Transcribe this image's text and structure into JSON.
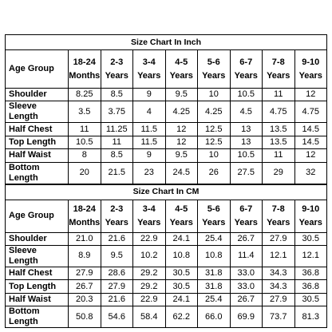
{
  "tables": [
    {
      "title": "Size Chart In Inch",
      "header": {
        "label": "Age Group",
        "columns": [
          {
            "range": "18-24",
            "unit": "Months"
          },
          {
            "range": "2-3",
            "unit": "Years"
          },
          {
            "range": "3-4",
            "unit": "Years"
          },
          {
            "range": "4-5",
            "unit": "Years"
          },
          {
            "range": "5-6",
            "unit": "Years"
          },
          {
            "range": "6-7",
            "unit": "Years"
          },
          {
            "range": "7-8",
            "unit": "Years"
          },
          {
            "range": "9-10",
            "unit": "Years"
          }
        ]
      },
      "rows": [
        {
          "label": "Shoulder",
          "values": [
            "8.25",
            "8.5",
            "9",
            "9.5",
            "10",
            "10.5",
            "11",
            "12"
          ]
        },
        {
          "label": "Sleeve Length",
          "values": [
            "3.5",
            "3.75",
            "4",
            "4.25",
            "4.25",
            "4.5",
            "4.75",
            "4.75"
          ]
        },
        {
          "label": "Half Chest",
          "values": [
            "11",
            "11.25",
            "11.5",
            "12",
            "12.5",
            "13",
            "13.5",
            "14.5"
          ]
        },
        {
          "label": "Top Length",
          "values": [
            "10.5",
            "11",
            "11.5",
            "12",
            "12.5",
            "13",
            "13.5",
            "14.5"
          ]
        },
        {
          "label": "Half Waist",
          "values": [
            "8",
            "8.5",
            "9",
            "9.5",
            "10",
            "10.5",
            "11",
            "12"
          ]
        },
        {
          "label": "Bottom Length",
          "values": [
            "20",
            "21.5",
            "23",
            "24.5",
            "26",
            "27.5",
            "29",
            "32"
          ]
        }
      ]
    },
    {
      "title": "Size Chart In CM",
      "header": {
        "label": "Age Group",
        "columns": [
          {
            "range": "18-24",
            "unit": "Months"
          },
          {
            "range": "2-3",
            "unit": "Years"
          },
          {
            "range": "3-4",
            "unit": "Years"
          },
          {
            "range": "4-5",
            "unit": "Years"
          },
          {
            "range": "5-6",
            "unit": "Years"
          },
          {
            "range": "6-7",
            "unit": "Years"
          },
          {
            "range": "7-8",
            "unit": "Years"
          },
          {
            "range": "9-10",
            "unit": "Years"
          }
        ]
      },
      "rows": [
        {
          "label": "Shoulder",
          "values": [
            "21.0",
            "21.6",
            "22.9",
            "24.1",
            "25.4",
            "26.7",
            "27.9",
            "30.5"
          ]
        },
        {
          "label": "Sleeve Length",
          "values": [
            "8.9",
            "9.5",
            "10.2",
            "10.8",
            "10.8",
            "11.4",
            "12.1",
            "12.1"
          ]
        },
        {
          "label": "Half Chest",
          "values": [
            "27.9",
            "28.6",
            "29.2",
            "30.5",
            "31.8",
            "33.0",
            "34.3",
            "36.8"
          ]
        },
        {
          "label": "Top Length",
          "values": [
            "26.7",
            "27.9",
            "29.2",
            "30.5",
            "31.8",
            "33.0",
            "34.3",
            "36.8"
          ]
        },
        {
          "label": "Half Waist",
          "values": [
            "20.3",
            "21.6",
            "22.9",
            "24.1",
            "25.4",
            "26.7",
            "27.9",
            "30.5"
          ]
        },
        {
          "label": "Bottom Length",
          "values": [
            "50.8",
            "54.6",
            "58.4",
            "62.2",
            "66.0",
            "69.9",
            "73.7",
            "81.3"
          ]
        }
      ]
    }
  ]
}
